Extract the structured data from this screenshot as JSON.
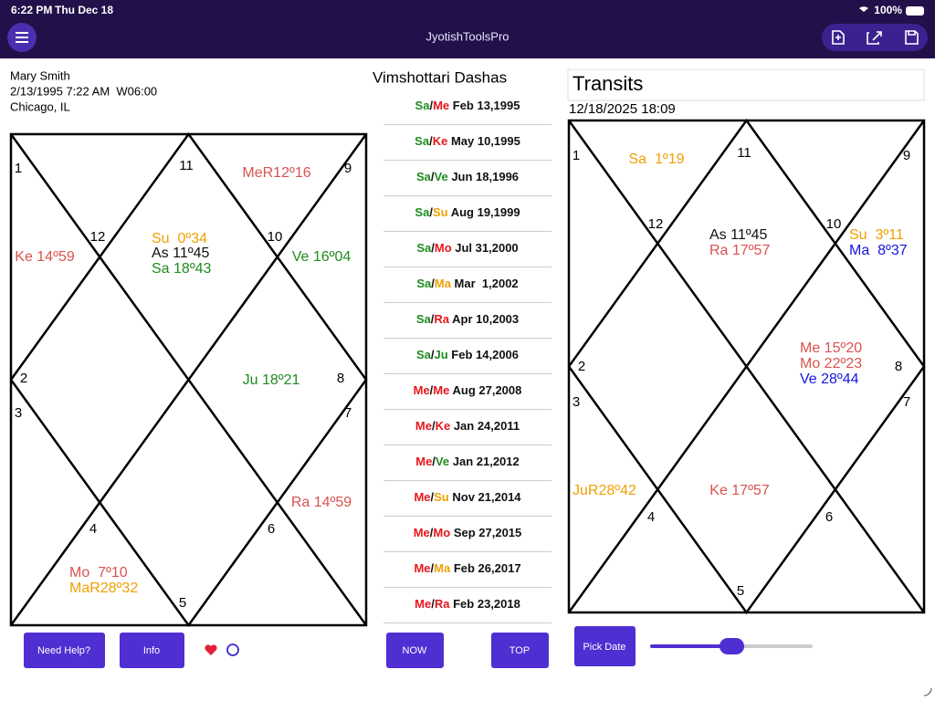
{
  "status_bar": {
    "time": "6:22 PM",
    "date": "Thu Dec 18",
    "battery": "100%"
  },
  "header": {
    "title": "JyotishToolsPro"
  },
  "birth": {
    "name": "Mary Smith",
    "datetime": "2/13/1995 7:22 AM  W06:00",
    "place": "Chicago, IL"
  },
  "natal_chart": {
    "houses": [
      "1",
      "2",
      "3",
      "4",
      "5",
      "6",
      "7",
      "8",
      "9",
      "10",
      "11",
      "12"
    ],
    "planets": [
      {
        "text": "MeR12º16",
        "color": "#d9534f"
      },
      {
        "text": "Ke 14º59",
        "color": "#d9534f"
      },
      {
        "text": "Su  0º34",
        "color": "#f0a000"
      },
      {
        "text": "As 11º45",
        "color": "#111111"
      },
      {
        "text": "Sa 18º43",
        "color": "#1e8c1e"
      },
      {
        "text": "Ve 16º04",
        "color": "#1e8c1e"
      },
      {
        "text": "Ju 18º21",
        "color": "#1e8c1e"
      },
      {
        "text": "Ra 14º59",
        "color": "#d9534f"
      },
      {
        "text": "Mo  7º10",
        "color": "#d9534f"
      },
      {
        "text": "MaR28º32",
        "color": "#f0a000"
      }
    ]
  },
  "dashas": {
    "title": "Vimshottari Dashas",
    "separator": "/",
    "rows": [
      {
        "major": "Sa",
        "major_color": "#1e8c1e",
        "minor": "Me",
        "minor_color": "#e8161b",
        "date": "Feb 13,1995"
      },
      {
        "major": "Sa",
        "major_color": "#1e8c1e",
        "minor": "Ke",
        "minor_color": "#e8161b",
        "date": "May 10,1995"
      },
      {
        "major": "Sa",
        "major_color": "#1e8c1e",
        "minor": "Ve",
        "minor_color": "#1e8c1e",
        "date": "Jun 18,1996"
      },
      {
        "major": "Sa",
        "major_color": "#1e8c1e",
        "minor": "Su",
        "minor_color": "#f0a000",
        "date": "Aug 19,1999"
      },
      {
        "major": "Sa",
        "major_color": "#1e8c1e",
        "minor": "Mo",
        "minor_color": "#e8161b",
        "date": "Jul 31,2000"
      },
      {
        "major": "Sa",
        "major_color": "#1e8c1e",
        "minor": "Ma",
        "minor_color": "#f0a000",
        "date": "Mar  1,2002"
      },
      {
        "major": "Sa",
        "major_color": "#1e8c1e",
        "minor": "Ra",
        "minor_color": "#e8161b",
        "date": "Apr 10,2003"
      },
      {
        "major": "Sa",
        "major_color": "#1e8c1e",
        "minor": "Ju",
        "minor_color": "#1e8c1e",
        "date": "Feb 14,2006"
      },
      {
        "major": "Me",
        "major_color": "#e8161b",
        "minor": "Me",
        "minor_color": "#e8161b",
        "date": "Aug 27,2008"
      },
      {
        "major": "Me",
        "major_color": "#e8161b",
        "minor": "Ke",
        "minor_color": "#e8161b",
        "date": "Jan 24,2011"
      },
      {
        "major": "Me",
        "major_color": "#e8161b",
        "minor": "Ve",
        "minor_color": "#1e8c1e",
        "date": "Jan 21,2012"
      },
      {
        "major": "Me",
        "major_color": "#e8161b",
        "minor": "Su",
        "minor_color": "#f0a000",
        "date": "Nov 21,2014"
      },
      {
        "major": "Me",
        "major_color": "#e8161b",
        "minor": "Mo",
        "minor_color": "#e8161b",
        "date": "Sep 27,2015"
      },
      {
        "major": "Me",
        "major_color": "#e8161b",
        "minor": "Ma",
        "minor_color": "#f0a000",
        "date": "Feb 26,2017"
      },
      {
        "major": "Me",
        "major_color": "#e8161b",
        "minor": "Ra",
        "minor_color": "#e8161b",
        "date": "Feb 23,2018"
      }
    ]
  },
  "transits": {
    "title": "Transits",
    "datetime": "12/18/2025 18:09",
    "chart": {
      "houses": [
        "1",
        "2",
        "3",
        "4",
        "5",
        "6",
        "7",
        "8",
        "9",
        "10",
        "11",
        "12"
      ],
      "planets": [
        {
          "text": "Sa  1º19",
          "color": "#f0a000"
        },
        {
          "text": "As 11º45",
          "color": "#111111"
        },
        {
          "text": "Ra 17º57",
          "color": "#d9534f"
        },
        {
          "text": "Su  3º11",
          "color": "#f0a000"
        },
        {
          "text": "Ma  8º37",
          "color": "#1515e0"
        },
        {
          "text": "Me 15º20",
          "color": "#d9534f"
        },
        {
          "text": "Mo 22º23",
          "color": "#d9534f"
        },
        {
          "text": "Ve 28º44",
          "color": "#1515e0"
        },
        {
          "text": "JuR28º42",
          "color": "#f0a000"
        },
        {
          "text": "Ke 17º57",
          "color": "#d9534f"
        }
      ]
    }
  },
  "buttons": {
    "help": "Need Help?",
    "info": "Info",
    "now": "NOW",
    "top": "TOP",
    "pick_date": "Pick Date"
  }
}
